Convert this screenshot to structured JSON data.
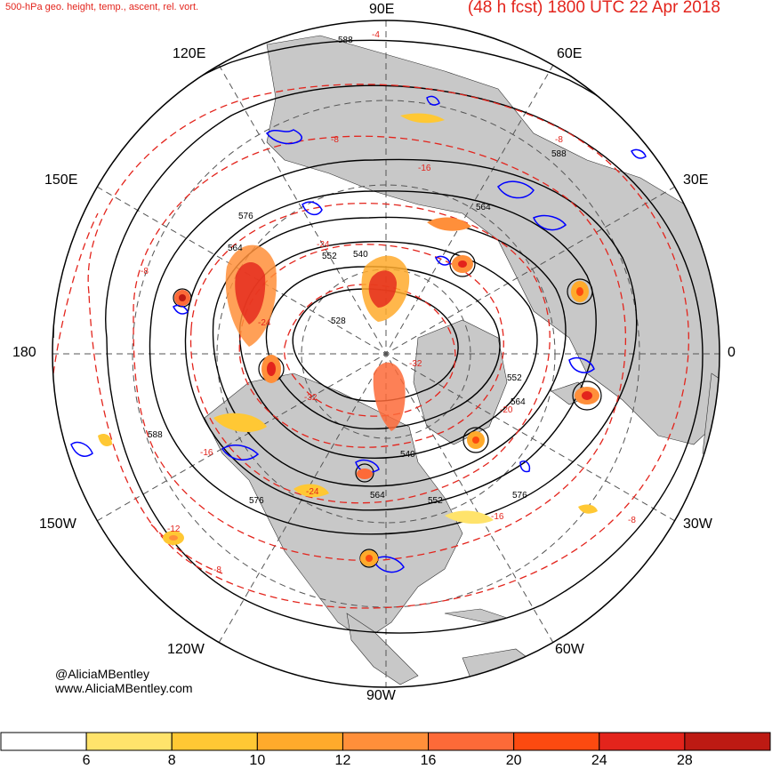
{
  "header": {
    "product_title": "500-hPa geo. height, temp., ascent, rel. vort.",
    "valid_title": "(48 h fcst) 1800 UTC 22 Apr 2018"
  },
  "longitude_labels": {
    "top": "90E",
    "upper_left": "120E",
    "upper_right": "60E",
    "left_upper": "150E",
    "right_upper": "30E",
    "left": "180",
    "right": "0",
    "left_lower": "150W",
    "right_lower": "30W",
    "lower_left": "120W",
    "lower_right": "60W",
    "bottom": "90W"
  },
  "credits": {
    "handle": "@AliciaMBentley",
    "website": "www.AliciaMBentley.com"
  },
  "height_contour_labels": [
    "588",
    "588",
    "576",
    "564",
    "552",
    "540",
    "528",
    "564",
    "552",
    "564",
    "540",
    "564",
    "552",
    "576",
    "576",
    "588"
  ],
  "temperature_contour_labels": [
    "-4",
    "-8",
    "-8",
    "-16",
    "-24",
    "-32",
    "-32",
    "-24",
    "-16",
    "-8",
    "-8",
    "-16",
    "-20",
    "-24",
    "-12",
    "-8"
  ],
  "colorbar": {
    "colors": [
      "#ffffff",
      "#ffe36b",
      "#ffc834",
      "#ffaa2b",
      "#ff8f3a",
      "#fd6a38",
      "#fc4a10",
      "#e3241c",
      "#bd1a13"
    ],
    "tick_labels": [
      "6",
      "8",
      "10",
      "12",
      "16",
      "20",
      "24",
      "28"
    ]
  },
  "colors": {
    "land": "#c8c8c8",
    "ocean": "#ffffff",
    "height_contour": "#000000",
    "temperature_contour": "#e3241c",
    "ascent_contour": "#0000ff",
    "grid": "#555555"
  }
}
